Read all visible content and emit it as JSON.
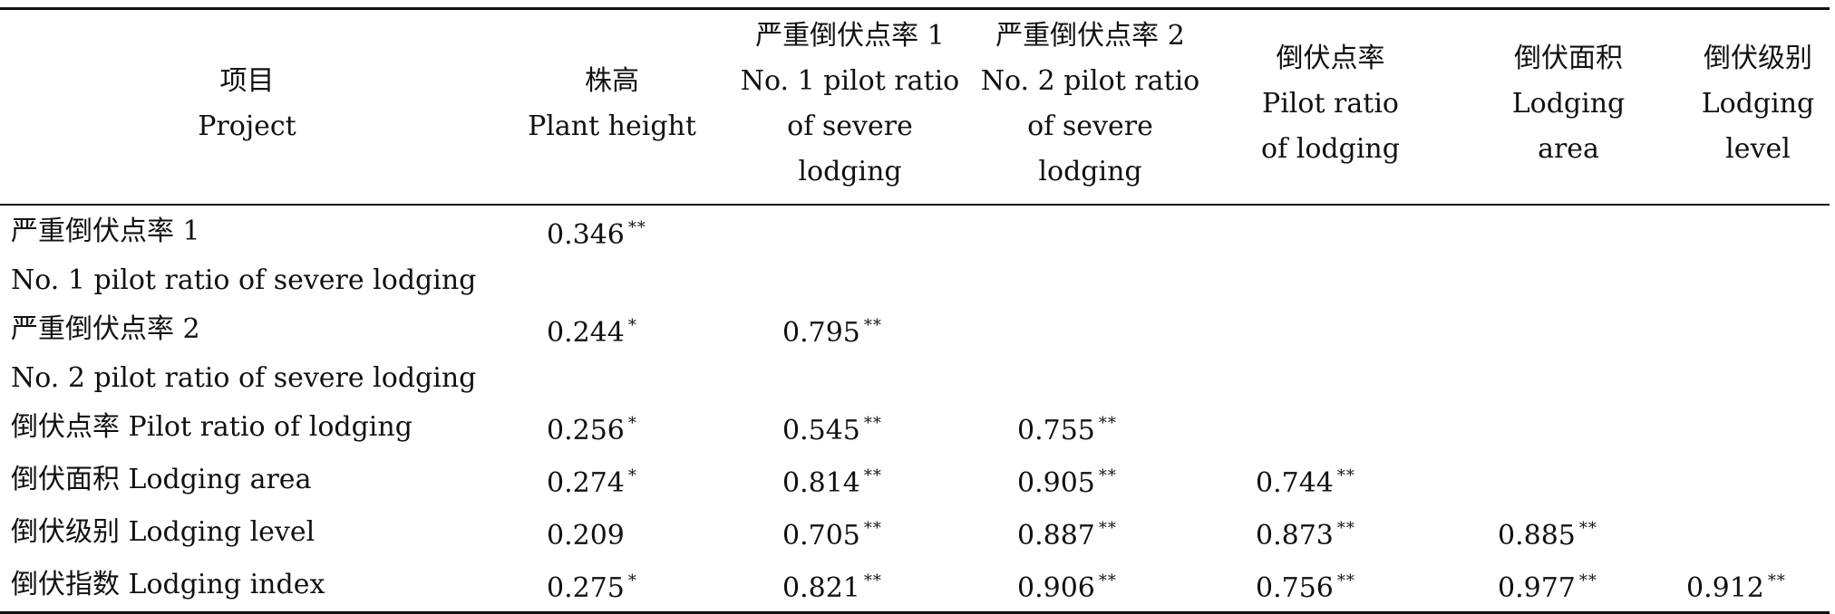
{
  "headers": [
    {
      "zh": "项目",
      "en": [
        "Project"
      ]
    },
    {
      "zh": "株高",
      "en": [
        "Plant height"
      ]
    },
    {
      "zh": "严重倒伏点率 1",
      "en": [
        "No. 1 pilot ratio",
        "of severe",
        "lodging"
      ]
    },
    {
      "zh": "严重倒伏点率 2",
      "en": [
        "No. 2 pilot ratio",
        "of severe",
        "lodging"
      ]
    },
    {
      "zh": "倒伏点率",
      "en": [
        "Pilot ratio",
        "of lodging"
      ]
    },
    {
      "zh": "倒伏面积",
      "en": [
        "Lodging",
        "area"
      ]
    },
    {
      "zh": "倒伏级别",
      "en": [
        "Lodging",
        "level"
      ]
    }
  ],
  "rows": [
    {
      "label": "严重倒伏点率 1",
      "cells": [
        {
          "v": "0.346",
          "s": "**"
        }
      ]
    },
    {
      "label": "No. 1 pilot ratio of severe lodging",
      "cells": []
    },
    {
      "label": "严重倒伏点率 2",
      "cells": [
        {
          "v": "0.244",
          "s": "*"
        },
        {
          "v": "0.795",
          "s": "**"
        }
      ]
    },
    {
      "label": "No. 2 pilot ratio of severe lodging",
      "cells": []
    },
    {
      "label": "倒伏点率 Pilot ratio of lodging",
      "cells": [
        {
          "v": "0.256",
          "s": "*"
        },
        {
          "v": "0.545",
          "s": "**"
        },
        {
          "v": "0.755",
          "s": "**"
        }
      ]
    },
    {
      "label": "倒伏面积 Lodging area",
      "cells": [
        {
          "v": "0.274",
          "s": "*"
        },
        {
          "v": "0.814",
          "s": "**"
        },
        {
          "v": "0.905",
          "s": "**"
        },
        {
          "v": "0.744",
          "s": "**"
        }
      ]
    },
    {
      "label": "倒伏级别 Lodging level",
      "cells": [
        {
          "v": "0.209",
          "s": ""
        },
        {
          "v": "0.705",
          "s": "**"
        },
        {
          "v": "0.887",
          "s": "**"
        },
        {
          "v": "0.873",
          "s": "**"
        },
        {
          "v": "0.885",
          "s": "**"
        }
      ]
    },
    {
      "label": "倒伏指数 Lodging index",
      "cells": [
        {
          "v": "0.275",
          "s": "*"
        },
        {
          "v": "0.821",
          "s": "**"
        },
        {
          "v": "0.906",
          "s": "**"
        },
        {
          "v": "0.756",
          "s": "**"
        },
        {
          "v": "0.977",
          "s": "**"
        },
        {
          "v": "0.912",
          "s": "**"
        }
      ]
    }
  ]
}
